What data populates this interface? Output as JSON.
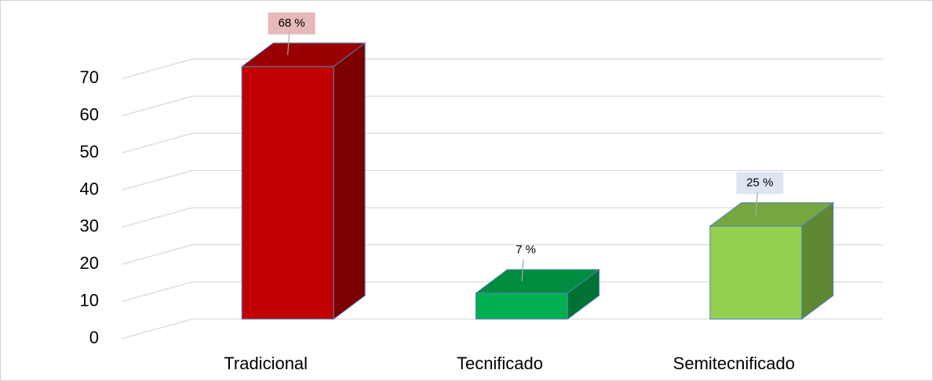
{
  "chart_data": {
    "type": "bar3d",
    "categories": [
      "Tradicional",
      "Tecnificado",
      "Semitecnificado"
    ],
    "values": [
      68,
      7,
      25
    ],
    "value_labels": [
      "68 %",
      "7 %",
      "25 %"
    ],
    "colors": [
      "#c00000",
      "#00b050",
      "#92d050"
    ],
    "label_backgrounds": [
      "#e6b8b7",
      null,
      "#dce6f2"
    ],
    "ylim": [
      0,
      80
    ],
    "yticks": [
      0,
      10,
      20,
      30,
      40,
      50,
      60,
      70
    ],
    "grid": true
  }
}
